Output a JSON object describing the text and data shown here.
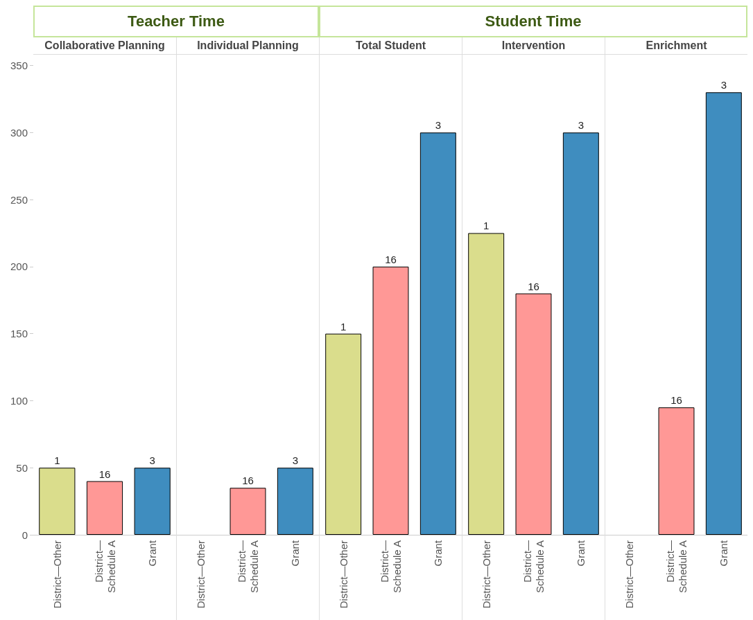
{
  "chart_data": [
    {
      "type": "bar",
      "title": "Collaborative Planning",
      "annotations": [
        "Teacher Time",
        {
          "text": "1",
          "x": "District—Other",
          "y": 50
        },
        {
          "text": "16",
          "x": "District—\nSchedule A",
          "y": 40
        },
        {
          "text": "3",
          "x": "Grant",
          "y": 50
        }
      ],
      "categories": [
        "District—Other",
        "District—\nSchedule A",
        "Grant"
      ],
      "values": [
        50,
        40,
        50
      ],
      "colors": [
        "#dadd8c",
        "#ff9896",
        "#3f8dbf"
      ],
      "ylim": [
        0,
        357
      ],
      "yticks": [
        0,
        50,
        100,
        150,
        200,
        250,
        300,
        350
      ],
      "grid": false
    },
    {
      "type": "bar",
      "title": "Individual Planning",
      "annotations": [
        {
          "text": "16",
          "x": "District—\nSchedule A",
          "y": 35
        },
        {
          "text": "3",
          "x": "Grant",
          "y": 50
        }
      ],
      "categories": [
        "District—Other",
        "District—\nSchedule A",
        "Grant"
      ],
      "values": [
        null,
        35,
        50
      ],
      "colors": [
        "#dadd8c",
        "#ff9896",
        "#3f8dbf"
      ],
      "ylim": [
        0,
        357
      ],
      "yticks": [
        0,
        50,
        100,
        150,
        200,
        250,
        300,
        350
      ],
      "grid": false,
      "tick_labels": "x"
    },
    {
      "type": "bar",
      "title": "Total Student",
      "annotations": [
        "Student Time",
        {
          "text": "1",
          "x": "District—Other",
          "y": 150
        },
        {
          "text": "16",
          "x": "District—\nSchedule A",
          "y": 200
        },
        {
          "text": "3",
          "x": "Grant",
          "y": 300
        }
      ],
      "categories": [
        "District—Other",
        "District—\nSchedule A",
        "Grant"
      ],
      "values": [
        150,
        200,
        300
      ],
      "colors": [
        "#dadd8c",
        "#ff9896",
        "#3f8dbf"
      ],
      "ylim": [
        0,
        357
      ],
      "yticks": [
        0,
        50,
        100,
        150,
        200,
        250,
        300,
        350
      ],
      "grid": false,
      "tick_labels": "x"
    },
    {
      "type": "bar",
      "title": "Intervention",
      "annotations": [
        {
          "text": "1",
          "x": "District—Other",
          "y": 225
        },
        {
          "text": "16",
          "x": "District—\nSchedule A",
          "y": 180
        },
        {
          "text": "3",
          "x": "Grant",
          "y": 300
        }
      ],
      "categories": [
        "District—Other",
        "District—\nSchedule A",
        "Grant"
      ],
      "values": [
        225,
        180,
        300
      ],
      "colors": [
        "#dadd8c",
        "#ff9896",
        "#3f8dbf"
      ],
      "ylim": [
        0,
        357
      ],
      "yticks": [
        0,
        50,
        100,
        150,
        200,
        250,
        300,
        350
      ],
      "grid": false,
      "tick_labels": "x"
    },
    {
      "type": "bar",
      "title": "Enrichment",
      "annotations": [
        {
          "text": "16",
          "x": "District—\nSchedule A",
          "y": 95
        },
        {
          "text": "3",
          "x": "Grant",
          "y": 330
        }
      ],
      "categories": [
        "District—Other",
        "District—\nSchedule A",
        "Grant"
      ],
      "values": [
        null,
        95,
        330
      ],
      "colors": [
        "#dadd8c",
        "#ff9896",
        "#3f8dbf"
      ],
      "ylim": [
        0,
        357
      ],
      "yticks": [
        0,
        50,
        100,
        150,
        200,
        250,
        300,
        350
      ],
      "grid": false,
      "tick_labels": "x"
    }
  ]
}
